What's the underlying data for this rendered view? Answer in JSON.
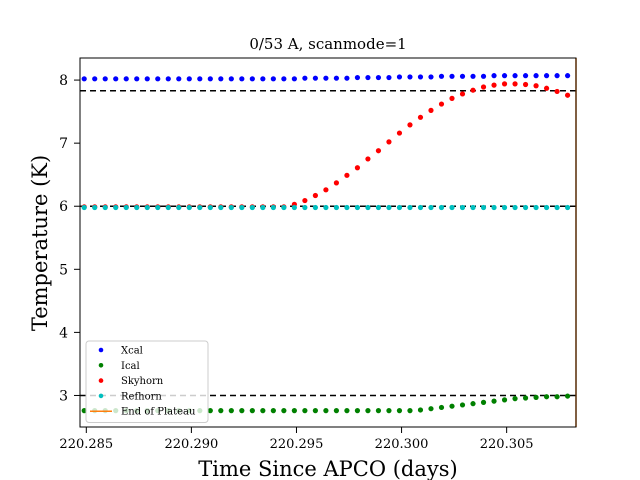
{
  "chart_data": {
    "type": "scatter",
    "title": "0/53 A, scanmode=1",
    "xlabel": "Time Since APCO (days)",
    "ylabel": "Temperature (K)",
    "xlim": [
      220.2847,
      220.3083
    ],
    "ylim": [
      2.5,
      8.35
    ],
    "x_ticks": [
      220.285,
      220.29,
      220.295,
      220.3,
      220.305
    ],
    "x_tick_labels": [
      "220.285",
      "220.290",
      "220.295",
      "220.300",
      "220.305"
    ],
    "y_ticks": [
      3,
      4,
      5,
      6,
      7,
      8
    ],
    "y_tick_labels": [
      "3",
      "4",
      "5",
      "6",
      "7",
      "8"
    ],
    "grid": false,
    "legend_position": "lower-left",
    "reference_lines": [
      {
        "y": 7.83,
        "style": "dashed",
        "color": "#000000"
      },
      {
        "y": 3.0,
        "style": "dashed",
        "color": "#000000"
      },
      {
        "y": 6.0,
        "style": "dashed",
        "color": "#000000"
      }
    ],
    "vertical_lines": [
      {
        "x": 220.3083,
        "color": "#ff7f0e"
      }
    ],
    "x_start": 220.2849,
    "x_step": 0.0005,
    "n_points": 48,
    "series": [
      {
        "name": "Xcal",
        "color": "#0000ff",
        "marker": "dot",
        "values": [
          8.02,
          8.02,
          8.02,
          8.02,
          8.02,
          8.02,
          8.02,
          8.02,
          8.02,
          8.02,
          8.02,
          8.02,
          8.02,
          8.02,
          8.02,
          8.02,
          8.02,
          8.02,
          8.02,
          8.02,
          8.02,
          8.03,
          8.03,
          8.03,
          8.03,
          8.03,
          8.04,
          8.04,
          8.04,
          8.04,
          8.05,
          8.05,
          8.05,
          8.05,
          8.06,
          8.06,
          8.06,
          8.06,
          8.06,
          8.07,
          8.07,
          8.07,
          8.07,
          8.07,
          8.07,
          8.07,
          8.07,
          8.07
        ]
      },
      {
        "name": "Ical",
        "color": "#008000",
        "marker": "dot",
        "values": [
          2.76,
          2.76,
          2.76,
          2.76,
          2.76,
          2.76,
          2.76,
          2.76,
          2.76,
          2.76,
          2.76,
          2.76,
          2.76,
          2.76,
          2.76,
          2.76,
          2.76,
          2.76,
          2.76,
          2.76,
          2.76,
          2.76,
          2.76,
          2.76,
          2.76,
          2.76,
          2.76,
          2.76,
          2.76,
          2.76,
          2.76,
          2.76,
          2.77,
          2.79,
          2.81,
          2.83,
          2.85,
          2.87,
          2.89,
          2.91,
          2.93,
          2.95,
          2.96,
          2.97,
          2.98,
          2.98,
          2.99,
          2.99
        ]
      },
      {
        "name": "Skyhorn",
        "color": "#ff0000",
        "marker": "dot",
        "values": [
          5.99,
          5.99,
          5.99,
          5.99,
          5.99,
          5.99,
          5.99,
          5.99,
          5.99,
          5.99,
          5.99,
          5.99,
          5.99,
          5.99,
          5.99,
          5.99,
          5.99,
          5.99,
          5.99,
          5.99,
          6.03,
          6.09,
          6.17,
          6.26,
          6.37,
          6.49,
          6.61,
          6.75,
          6.88,
          7.02,
          7.16,
          7.29,
          7.41,
          7.52,
          7.62,
          7.71,
          7.78,
          7.84,
          7.89,
          7.92,
          7.94,
          7.94,
          7.93,
          7.91,
          7.87,
          7.82,
          7.76,
          7.68
        ]
      },
      {
        "name": "Refhorn",
        "color": "#00bfbf",
        "marker": "dot",
        "values": [
          5.98,
          5.98,
          5.98,
          5.98,
          5.98,
          5.98,
          5.98,
          5.98,
          5.98,
          5.98,
          5.98,
          5.98,
          5.98,
          5.98,
          5.98,
          5.98,
          5.98,
          5.98,
          5.98,
          5.98,
          5.98,
          5.98,
          5.98,
          5.98,
          5.98,
          5.98,
          5.98,
          5.98,
          5.98,
          5.98,
          5.98,
          5.98,
          5.98,
          5.98,
          5.98,
          5.98,
          5.98,
          5.98,
          5.98,
          5.98,
          5.98,
          5.98,
          5.98,
          5.98,
          5.98,
          5.98,
          5.98,
          5.98
        ]
      }
    ],
    "legend": [
      {
        "label": "Xcal",
        "color": "#0000ff",
        "kind": "dot"
      },
      {
        "label": "Ical",
        "color": "#008000",
        "kind": "dot"
      },
      {
        "label": "Skyhorn",
        "color": "#ff0000",
        "kind": "dot"
      },
      {
        "label": "Refhorn",
        "color": "#00bfbf",
        "kind": "dot"
      },
      {
        "label": "End of Plateau",
        "color": "#ff7f0e",
        "kind": "line"
      }
    ]
  }
}
